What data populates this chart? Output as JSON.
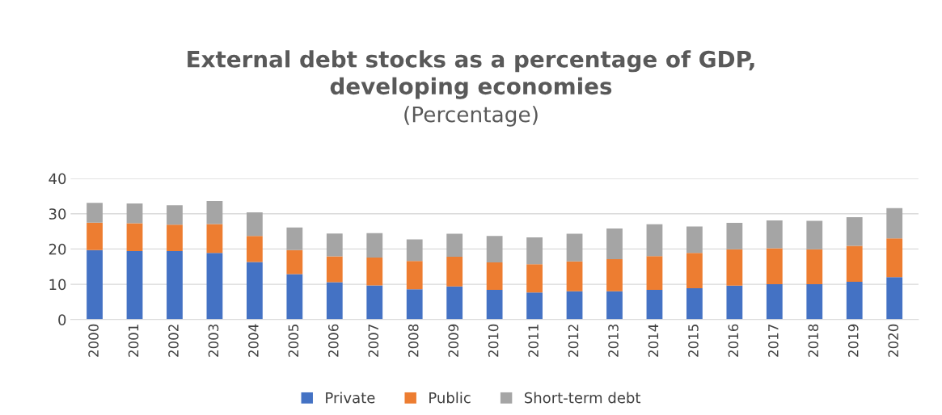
{
  "chart_data": {
    "type": "bar",
    "title": "External debt stocks as a percentage of GDP,\ndeveloping economies",
    "subtitle": "(Percentage)",
    "categories": [
      "2000",
      "2001",
      "2002",
      "2003",
      "2004",
      "2005",
      "2006",
      "2007",
      "2008",
      "2009",
      "2010",
      "2011",
      "2012",
      "2013",
      "2014",
      "2015",
      "2016",
      "2017",
      "2018",
      "2019",
      "2020"
    ],
    "stacked": true,
    "series": [
      {
        "name": "Private",
        "color": "#4472c4",
        "values": [
          19.7,
          19.4,
          19.4,
          18.9,
          16.3,
          12.9,
          10.6,
          9.7,
          8.6,
          9.4,
          8.4,
          7.7,
          8.0,
          8.0,
          8.4,
          8.9,
          9.6,
          10.0,
          10.0,
          10.7,
          12.0
        ]
      },
      {
        "name": "Public",
        "color": "#ed7d31",
        "values": [
          7.8,
          7.9,
          7.5,
          8.2,
          7.4,
          6.8,
          7.3,
          7.9,
          8.0,
          8.4,
          7.8,
          8.0,
          8.5,
          9.1,
          9.6,
          10.0,
          10.3,
          10.2,
          9.9,
          10.2,
          11.0
        ]
      },
      {
        "name": "Short-term debt",
        "color": "#a5a5a5",
        "values": [
          5.6,
          5.6,
          5.5,
          6.5,
          6.7,
          6.4,
          6.5,
          6.9,
          6.1,
          6.5,
          7.5,
          7.6,
          7.8,
          8.7,
          9.0,
          7.5,
          7.5,
          7.9,
          8.1,
          8.1,
          8.6
        ]
      }
    ],
    "ylim": [
      0,
      40
    ],
    "yticks": [
      0,
      10,
      20,
      30,
      40
    ],
    "grid": "y",
    "legend": "bottom"
  }
}
